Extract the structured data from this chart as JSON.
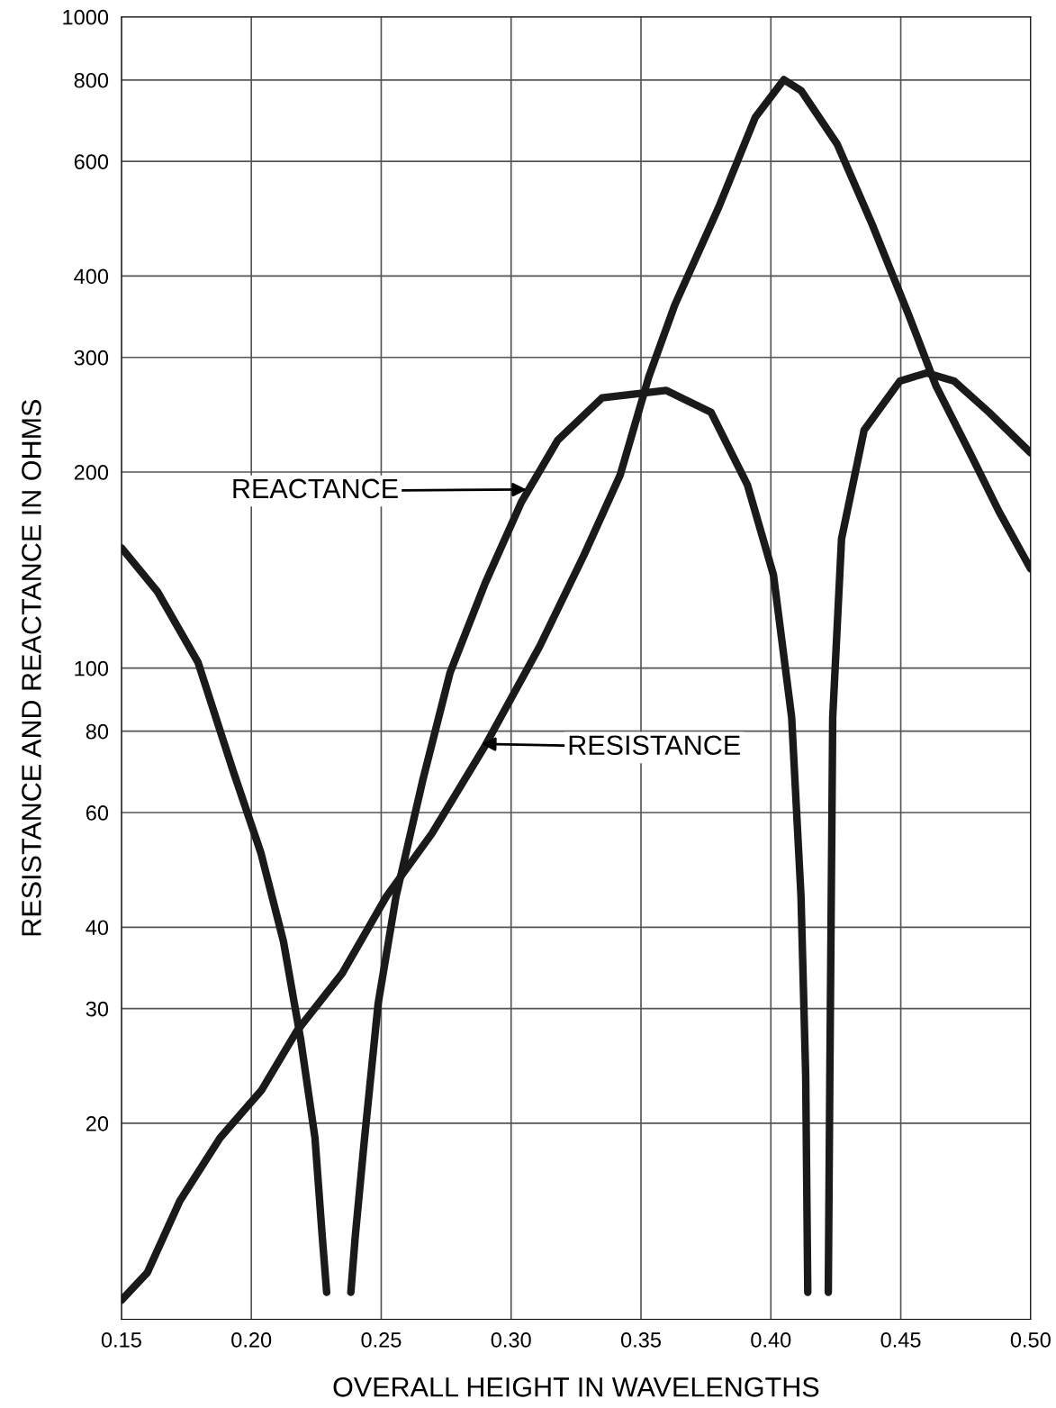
{
  "chart_data": {
    "type": "line",
    "xlabel": "OVERALL HEIGHT IN WAVELENGTHS",
    "ylabel": "RESISTANCE AND REACTANCE IN OHMS",
    "log": "y",
    "grid": true,
    "marker": "none",
    "line_style": "solid",
    "xlim": [
      0.15,
      0.5
    ],
    "ylim": [
      10,
      1000
    ],
    "xticks": [
      {
        "value": 0.15,
        "label": "0.15"
      },
      {
        "value": 0.2,
        "label": "0.20"
      },
      {
        "value": 0.25,
        "label": "0.25"
      },
      {
        "value": 0.3,
        "label": "0.30"
      },
      {
        "value": 0.35,
        "label": "0.35"
      },
      {
        "value": 0.4,
        "label": "0.40"
      },
      {
        "value": 0.45,
        "label": "0.45"
      },
      {
        "value": 0.5,
        "label": "0.50"
      }
    ],
    "yticks": [
      20,
      30,
      40,
      60,
      80,
      100,
      200,
      300,
      400,
      600,
      800,
      1000
    ],
    "series": [
      {
        "color": "#1a1a1a",
        "x": [
          0.15,
          0.16,
          0.1725,
          0.188,
          0.204,
          0.2175,
          0.235,
          0.252,
          0.2695,
          0.29,
          0.311,
          0.328,
          0.342,
          0.353,
          0.363,
          0.38,
          0.394,
          0.405,
          0.4116,
          0.4255,
          0.439,
          0.453,
          0.4636,
          0.4774,
          0.4878,
          0.5
        ],
        "values": [
          10.7,
          11.8,
          15.2,
          19,
          22.5,
          27.7,
          34,
          44.6,
          55.7,
          76,
          108,
          149,
          198,
          280,
          361,
          511,
          701,
          801,
          771,
          638,
          480,
          349,
          271,
          211,
          174,
          142
        ]
      },
      {
        "color": "#1a1a1a",
        "x": [
          0.15,
          0.1639,
          0.1795,
          0.193,
          0.2037,
          0.2124,
          0.219,
          0.2245,
          0.2273,
          0.229,
          0.233,
          0.2383,
          0.24,
          0.2436,
          0.2488,
          0.2557,
          0.266,
          0.2765,
          0.29,
          0.304,
          0.318,
          0.335,
          0.3596,
          0.377,
          0.391,
          0.401,
          0.408,
          0.4116,
          0.4134,
          0.4142,
          0.418,
          0.4221,
          0.4227,
          0.4238,
          0.4272,
          0.4359,
          0.4497,
          0.46,
          0.4705,
          0.484,
          0.5
        ],
        "values": [
          153,
          131,
          102,
          69.5,
          52,
          38,
          26.9,
          19,
          13.4,
          11,
          null,
          11,
          13.4,
          19,
          30.5,
          44.6,
          67.3,
          98.4,
          135,
          180,
          224,
          260,
          267,
          247,
          191,
          139,
          84,
          44.6,
          23.7,
          11,
          null,
          11,
          23.7,
          84,
          158,
          232,
          276,
          284,
          276,
          247,
          214
        ]
      }
    ],
    "annotations": [
      {
        "text": "REACTANCE",
        "x": 0.306,
        "y": 188
      },
      {
        "text": "RESISTANCE",
        "x": 0.2886,
        "y": 76.5
      }
    ]
  }
}
